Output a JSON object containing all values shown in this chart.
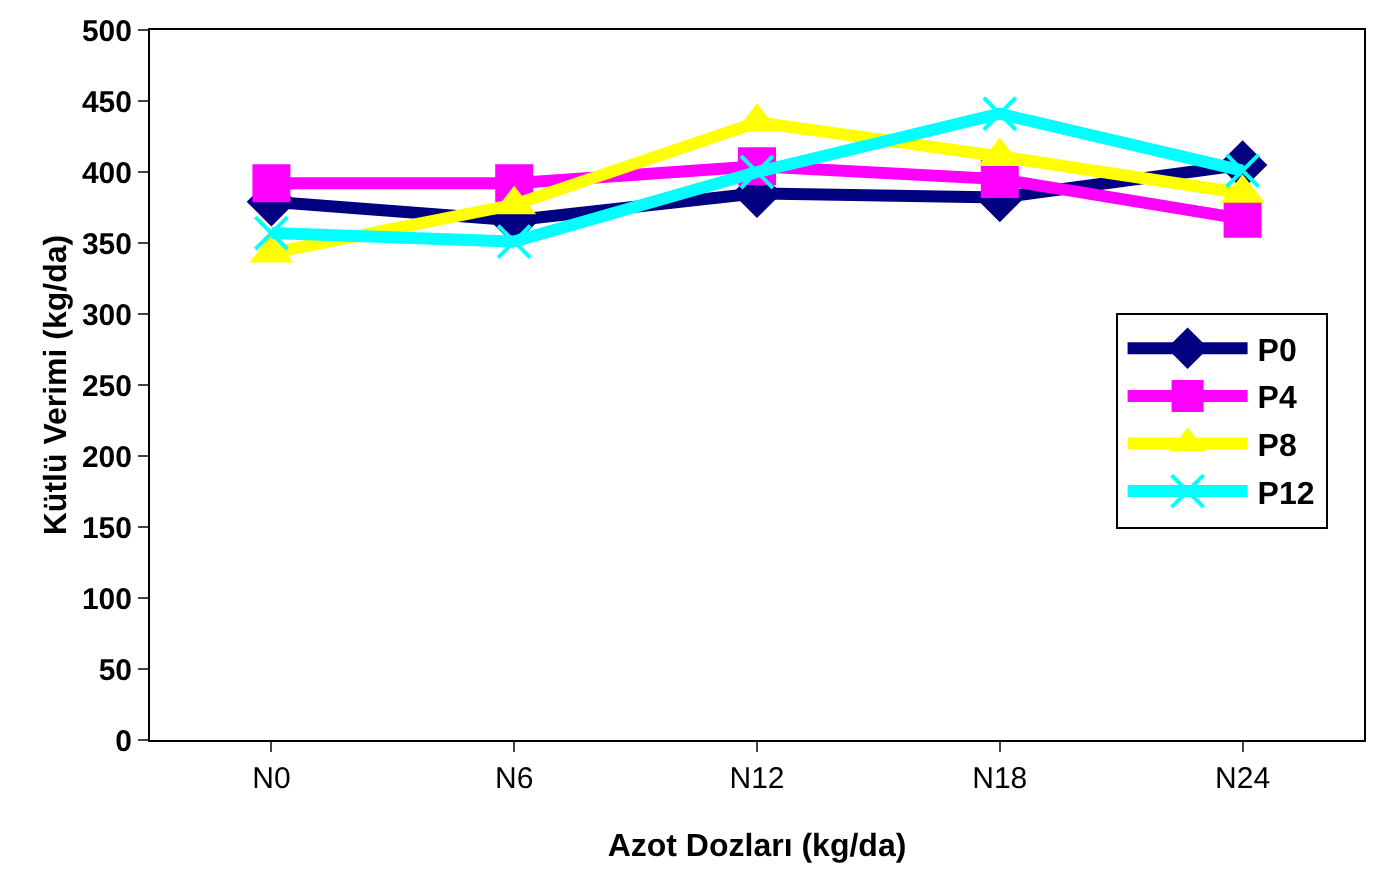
{
  "chart_data": {
    "type": "line",
    "xlabel": "Azot Dozları (kg/da)",
    "ylabel": "Kütlü Verimi (kg/da)",
    "categories": [
      "N0",
      "N6",
      "N12",
      "N18",
      "N24"
    ],
    "ylim": [
      0,
      500
    ],
    "yticks": [
      0,
      50,
      100,
      150,
      200,
      250,
      300,
      350,
      400,
      450,
      500
    ],
    "grid": false,
    "legend": "right",
    "series": [
      {
        "name": "P0",
        "color": "#000080",
        "marker": "diamond",
        "values": [
          379,
          366,
          385,
          382,
          405
        ]
      },
      {
        "name": "P4",
        "color": "#ff00ff",
        "marker": "square",
        "values": [
          392,
          392,
          404,
          395,
          367
        ]
      },
      {
        "name": "P8",
        "color": "#ffff00",
        "marker": "triangle",
        "values": [
          343,
          377,
          435,
          411,
          385
        ]
      },
      {
        "name": "P12",
        "color": "#00ffff",
        "marker": "cross",
        "values": [
          357,
          351,
          400,
          441,
          401
        ]
      }
    ]
  }
}
